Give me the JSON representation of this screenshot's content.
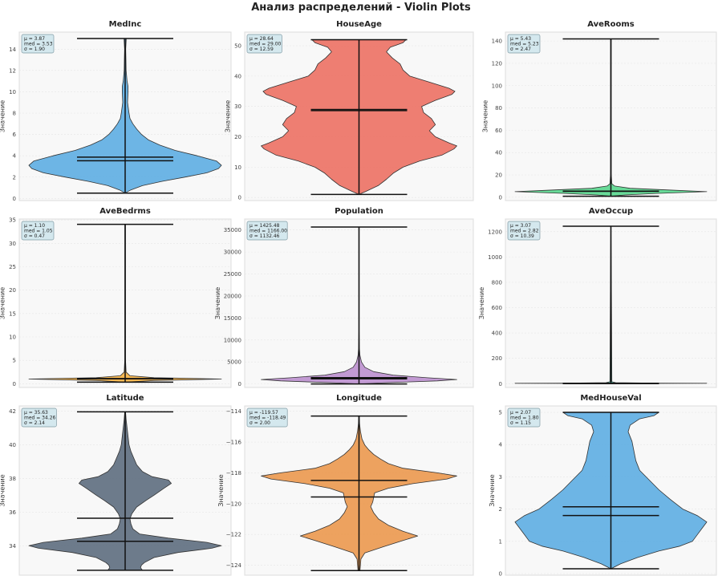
{
  "figure": {
    "suptitle": "Анализ распределений - Violin Plots",
    "ylabel": "Значение"
  },
  "chart_data": [
    {
      "type": "violin",
      "title": "MedInc",
      "ylabel": "Значение",
      "color": "#5dade2",
      "ylim": [
        -0.2,
        15.6
      ],
      "yticks": [
        0,
        2,
        4,
        6,
        8,
        10,
        12,
        14
      ],
      "min": 0.5,
      "max": 15.0,
      "mean": 3.87,
      "median": 3.53,
      "std": 1.9,
      "stats_text": [
        "μ = 3.87",
        "med = 3.53",
        "σ = 1.90"
      ],
      "grid": true,
      "profile": [
        [
          0.5,
          0.0
        ],
        [
          0.8,
          0.06
        ],
        [
          1.2,
          0.18
        ],
        [
          1.6,
          0.38
        ],
        [
          2.0,
          0.62
        ],
        [
          2.4,
          0.85
        ],
        [
          2.8,
          0.97
        ],
        [
          3.1,
          1.0
        ],
        [
          3.5,
          0.95
        ],
        [
          4.0,
          0.75
        ],
        [
          4.5,
          0.52
        ],
        [
          5.0,
          0.36
        ],
        [
          5.5,
          0.24
        ],
        [
          6.0,
          0.17
        ],
        [
          6.5,
          0.12
        ],
        [
          7.0,
          0.08
        ],
        [
          7.5,
          0.05
        ],
        [
          8.0,
          0.04
        ],
        [
          9.0,
          0.025
        ],
        [
          10.0,
          0.03
        ],
        [
          10.5,
          0.03
        ],
        [
          11.0,
          0.02
        ],
        [
          12.0,
          0.01
        ],
        [
          13.0,
          0.008
        ],
        [
          14.0,
          0.006
        ],
        [
          15.0,
          0.012
        ]
      ]
    },
    {
      "type": "violin",
      "title": "HouseAge",
      "ylabel": "Значение",
      "color": "#ec7063",
      "ylim": [
        -1.0,
        54.5
      ],
      "yticks": [
        0,
        10,
        20,
        30,
        40,
        50
      ],
      "min": 1.0,
      "max": 52.0,
      "mean": 28.64,
      "median": 29.0,
      "std": 12.59,
      "stats_text": [
        "μ = 28.64",
        "med = 29.00",
        "σ = 12.59"
      ],
      "grid": true,
      "profile": [
        [
          1.0,
          0.0
        ],
        [
          2.0,
          0.07
        ],
        [
          4.0,
          0.2
        ],
        [
          6.0,
          0.28
        ],
        [
          8.0,
          0.35
        ],
        [
          10.0,
          0.45
        ],
        [
          12.0,
          0.62
        ],
        [
          14.0,
          0.85
        ],
        [
          16.0,
          0.97
        ],
        [
          17.0,
          1.0
        ],
        [
          18.0,
          0.92
        ],
        [
          20.0,
          0.78
        ],
        [
          22.0,
          0.72
        ],
        [
          24.0,
          0.78
        ],
        [
          26.0,
          0.74
        ],
        [
          28.0,
          0.66
        ],
        [
          30.0,
          0.64
        ],
        [
          32.0,
          0.78
        ],
        [
          34.0,
          0.95
        ],
        [
          35.0,
          0.98
        ],
        [
          36.0,
          0.92
        ],
        [
          38.0,
          0.72
        ],
        [
          40.0,
          0.52
        ],
        [
          42.0,
          0.45
        ],
        [
          44.0,
          0.42
        ],
        [
          46.0,
          0.34
        ],
        [
          48.0,
          0.28
        ],
        [
          49.5,
          0.32
        ],
        [
          51.0,
          0.45
        ],
        [
          52.0,
          0.48
        ]
      ]
    },
    {
      "type": "violin",
      "title": "AveRooms",
      "ylabel": "Значение",
      "color": "#58d68d",
      "ylim": [
        -3.0,
        148.0
      ],
      "yticks": [
        0,
        20,
        40,
        60,
        80,
        100,
        120,
        140
      ],
      "min": 0.85,
      "max": 141.9,
      "mean": 5.43,
      "median": 5.23,
      "std": 2.47,
      "stats_text": [
        "μ = 5.43",
        "med = 5.23",
        "σ = 2.47"
      ],
      "grid": true,
      "profile": [
        [
          0.85,
          0.0
        ],
        [
          2.0,
          0.15
        ],
        [
          3.5,
          0.5
        ],
        [
          5.0,
          1.0
        ],
        [
          6.5,
          0.6
        ],
        [
          8.0,
          0.2
        ],
        [
          10.0,
          0.04
        ],
        [
          12.0,
          0.01
        ],
        [
          20.0,
          0.004
        ],
        [
          141.9,
          0.003
        ]
      ]
    },
    {
      "type": "violin",
      "title": "AveBedrms",
      "ylabel": "Значение",
      "color": "#f5b041",
      "ylim": [
        -0.8,
        35.2
      ],
      "yticks": [
        0,
        5,
        10,
        15,
        20,
        25,
        30,
        35
      ],
      "min": 0.33,
      "max": 34.07,
      "mean": 1.1,
      "median": 1.05,
      "std": 0.47,
      "stats_text": [
        "μ = 1.10",
        "med = 1.05",
        "σ = 0.47"
      ],
      "grid": true,
      "profile": [
        [
          0.33,
          0.0
        ],
        [
          0.7,
          0.3
        ],
        [
          1.0,
          1.0
        ],
        [
          1.3,
          0.3
        ],
        [
          1.7,
          0.05
        ],
        [
          2.5,
          0.01
        ],
        [
          5.0,
          0.004
        ],
        [
          34.07,
          0.003
        ]
      ]
    },
    {
      "type": "violin",
      "title": "Population",
      "ylabel": "Значение",
      "color": "#bb8fce",
      "ylim": [
        -800,
        37500
      ],
      "yticks": [
        0,
        5000,
        10000,
        15000,
        20000,
        25000,
        30000,
        35000
      ],
      "min": 3,
      "max": 35682,
      "mean": 1425.48,
      "median": 1166.0,
      "std": 1132.46,
      "stats_text": [
        "μ = 1425.48",
        "med = 1166.00",
        "σ = 1132.46"
      ],
      "grid": true,
      "profile": [
        [
          3,
          0.0
        ],
        [
          300,
          0.3
        ],
        [
          700,
          0.8
        ],
        [
          1000,
          1.0
        ],
        [
          1400,
          0.7
        ],
        [
          2000,
          0.35
        ],
        [
          2800,
          0.15
        ],
        [
          3800,
          0.06
        ],
        [
          5000,
          0.025
        ],
        [
          6500,
          0.01
        ],
        [
          8000,
          0.004
        ],
        [
          12000,
          0.002
        ],
        [
          35682,
          0.002
        ]
      ]
    },
    {
      "type": "violin",
      "title": "AveOccup",
      "ylabel": "Значение",
      "color": "#48c9b0",
      "ylim": [
        -30,
        1300
      ],
      "yticks": [
        0,
        200,
        400,
        600,
        800,
        1000,
        1200
      ],
      "min": 0.69,
      "max": 1243.3,
      "mean": 3.07,
      "median": 2.82,
      "std": 10.39,
      "stats_text": [
        "μ = 3.07",
        "med = 2.82",
        "σ = 10.39"
      ],
      "grid": true,
      "profile": [
        [
          0.69,
          0.0
        ],
        [
          1.5,
          0.4
        ],
        [
          2.8,
          1.0
        ],
        [
          4.0,
          0.5
        ],
        [
          8.0,
          0.05
        ],
        [
          15.0,
          0.01
        ],
        [
          1243.3,
          0.002
        ]
      ]
    },
    {
      "type": "violin",
      "title": "Latitude",
      "ylabel": "Значение",
      "color": "#5d6d7e",
      "ylim": [
        32.25,
        42.3
      ],
      "yticks": [
        34,
        36,
        38,
        40,
        42
      ],
      "min": 32.54,
      "max": 41.95,
      "mean": 35.63,
      "median": 34.26,
      "std": 2.14,
      "stats_text": [
        "μ = 35.63",
        "med = 34.26",
        "σ = 2.14"
      ],
      "grid": true,
      "profile": [
        [
          32.54,
          0.18
        ],
        [
          32.7,
          0.16
        ],
        [
          32.85,
          0.17
        ],
        [
          33.0,
          0.2
        ],
        [
          33.3,
          0.3
        ],
        [
          33.6,
          0.55
        ],
        [
          33.85,
          0.9
        ],
        [
          34.0,
          1.0
        ],
        [
          34.2,
          0.85
        ],
        [
          34.45,
          0.45
        ],
        [
          34.7,
          0.15
        ],
        [
          35.0,
          0.08
        ],
        [
          35.3,
          0.06
        ],
        [
          35.6,
          0.05
        ],
        [
          35.9,
          0.07
        ],
        [
          36.3,
          0.12
        ],
        [
          36.7,
          0.22
        ],
        [
          37.0,
          0.3
        ],
        [
          37.4,
          0.4
        ],
        [
          37.7,
          0.48
        ],
        [
          37.9,
          0.45
        ],
        [
          38.1,
          0.28
        ],
        [
          38.4,
          0.18
        ],
        [
          38.8,
          0.12
        ],
        [
          39.2,
          0.09
        ],
        [
          39.6,
          0.06
        ],
        [
          40.0,
          0.04
        ],
        [
          40.5,
          0.03
        ],
        [
          41.0,
          0.02
        ],
        [
          41.5,
          0.01
        ],
        [
          41.95,
          0.004
        ]
      ]
    },
    {
      "type": "violin",
      "title": "Longitude",
      "ylabel": "Значение",
      "color": "#eb984e",
      "ylim": [
        -124.65,
        -113.65
      ],
      "yticks": [
        -124,
        -122,
        -120,
        -118,
        -116,
        -114
      ],
      "min": -124.35,
      "max": -114.31,
      "mean": -119.57,
      "median": -118.49,
      "std": 2.0,
      "stats_text": [
        "μ = -119.57",
        "med = -118.49",
        "σ = 2.00"
      ],
      "grid": true,
      "profile": [
        [
          -124.35,
          0.01
        ],
        [
          -124.0,
          0.015
        ],
        [
          -123.6,
          0.02
        ],
        [
          -123.2,
          0.06
        ],
        [
          -122.8,
          0.25
        ],
        [
          -122.4,
          0.45
        ],
        [
          -122.1,
          0.6
        ],
        [
          -121.8,
          0.45
        ],
        [
          -121.4,
          0.3
        ],
        [
          -121.0,
          0.2
        ],
        [
          -120.6,
          0.15
        ],
        [
          -120.2,
          0.12
        ],
        [
          -119.9,
          0.14
        ],
        [
          -119.6,
          0.15
        ],
        [
          -119.3,
          0.16
        ],
        [
          -119.0,
          0.3
        ],
        [
          -118.7,
          0.55
        ],
        [
          -118.4,
          0.9
        ],
        [
          -118.2,
          1.0
        ],
        [
          -118.0,
          0.8
        ],
        [
          -117.7,
          0.45
        ],
        [
          -117.4,
          0.3
        ],
        [
          -117.1,
          0.22
        ],
        [
          -116.8,
          0.15
        ],
        [
          -116.5,
          0.1
        ],
        [
          -116.2,
          0.06
        ],
        [
          -115.8,
          0.03
        ],
        [
          -115.3,
          0.015
        ],
        [
          -114.8,
          0.006
        ],
        [
          -114.31,
          0.003
        ]
      ]
    },
    {
      "type": "violin",
      "title": "MedHouseVal",
      "ylabel": "Значение",
      "color": "#5dade2",
      "ylim": [
        -0.05,
        5.2
      ],
      "yticks": [
        0,
        1,
        2,
        3,
        4,
        5
      ],
      "min": 0.15,
      "max": 5.0,
      "mean": 2.07,
      "median": 1.8,
      "std": 1.15,
      "stats_text": [
        "μ = 2.07",
        "med = 1.80",
        "σ = 1.15"
      ],
      "grid": true,
      "profile": [
        [
          0.15,
          0.0
        ],
        [
          0.3,
          0.1
        ],
        [
          0.5,
          0.28
        ],
        [
          0.7,
          0.5
        ],
        [
          0.85,
          0.72
        ],
        [
          1.0,
          0.85
        ],
        [
          1.2,
          0.9
        ],
        [
          1.4,
          0.95
        ],
        [
          1.6,
          1.0
        ],
        [
          1.8,
          0.9
        ],
        [
          2.0,
          0.75
        ],
        [
          2.3,
          0.62
        ],
        [
          2.6,
          0.5
        ],
        [
          2.9,
          0.4
        ],
        [
          3.2,
          0.3
        ],
        [
          3.5,
          0.26
        ],
        [
          3.8,
          0.24
        ],
        [
          4.1,
          0.22
        ],
        [
          4.4,
          0.18
        ],
        [
          4.6,
          0.2
        ],
        [
          4.8,
          0.3
        ],
        [
          4.9,
          0.45
        ],
        [
          5.0,
          0.5
        ]
      ]
    }
  ]
}
